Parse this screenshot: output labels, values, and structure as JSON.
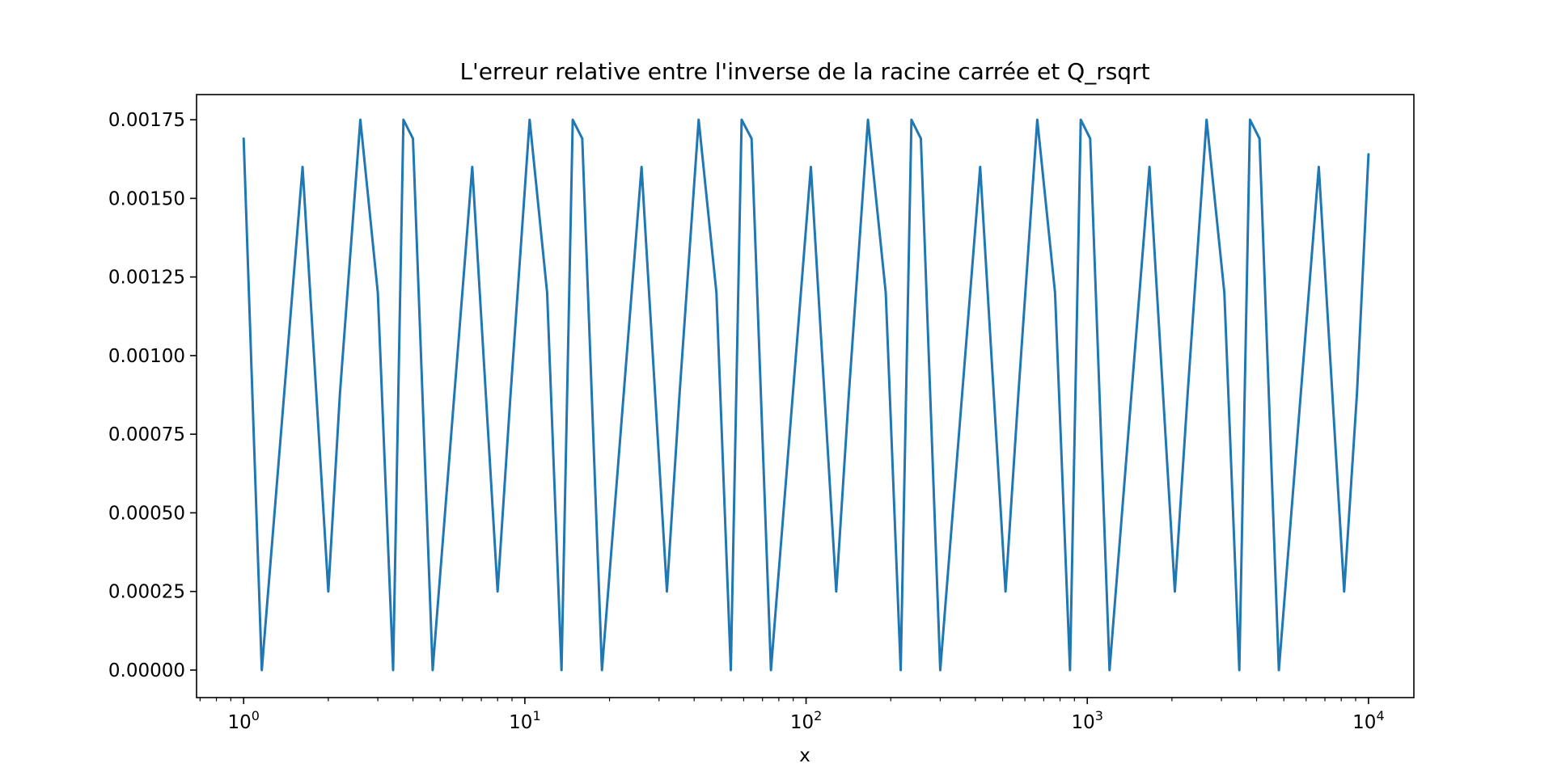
{
  "chart_data": {
    "type": "line",
    "title": "L'erreur relative entre l'inverse de la racine carrée et Q_rsqrt",
    "xlabel": "x",
    "ylabel": "",
    "xscale": "log",
    "xlim": [
      0.68,
      14500.0
    ],
    "ylim": [
      -8.75e-05,
      0.00183
    ],
    "grid": false,
    "y_ticks": [
      0,
      0.00025,
      0.0005,
      0.00075,
      0.001,
      0.00125,
      0.0015,
      0.00175
    ],
    "y_tick_labels": [
      "0.00000",
      "0.00025",
      "0.00050",
      "0.00075",
      "0.00100",
      "0.00125",
      "0.00150",
      "0.00175"
    ],
    "x_ticks": [
      1,
      10,
      100,
      1000,
      10000
    ],
    "x_tick_labels": [
      {
        "base": "10",
        "exp": "0"
      },
      {
        "base": "10",
        "exp": "1"
      },
      {
        "base": "10",
        "exp": "2"
      },
      {
        "base": "10",
        "exp": "3"
      },
      {
        "base": "10",
        "exp": "4"
      }
    ],
    "line_color": "#1f77b4",
    "series": [
      {
        "x": [
          1,
          1.16,
          1.62,
          2,
          2.2,
          2.6,
          3.0,
          3.4,
          3.7,
          4.0,
          4.7,
          6.5,
          8,
          8.9,
          10.4,
          12,
          13.5,
          14.8,
          16,
          18.8,
          26,
          32,
          35.5,
          41.5,
          48,
          54,
          59,
          64,
          75,
          104,
          128,
          142,
          166,
          192,
          217,
          237,
          256,
          300,
          416,
          512,
          569,
          664,
          768,
          868,
          948,
          1024,
          1200,
          1664,
          2048,
          2275,
          2656,
          3072,
          3472,
          3790,
          4096,
          4800,
          6656,
          8192,
          9100,
          10000
        ],
        "y": [
          0.00169,
          0.0,
          0.0016,
          0.00025,
          0.00088,
          0.00175,
          0.0012,
          0.0,
          0.00175,
          0.00169,
          0.0,
          0.0016,
          0.00025,
          0.00088,
          0.00175,
          0.0012,
          0.0,
          0.00175,
          0.00169,
          0.0,
          0.0016,
          0.00025,
          0.00088,
          0.00175,
          0.0012,
          0.0,
          0.00175,
          0.00169,
          0.0,
          0.0016,
          0.00025,
          0.00088,
          0.00175,
          0.0012,
          0.0,
          0.00175,
          0.00169,
          0.0,
          0.0016,
          0.00025,
          0.00088,
          0.00175,
          0.0012,
          0.0,
          0.00175,
          0.00169,
          0.0,
          0.0016,
          0.00025,
          0.00088,
          0.00175,
          0.0012,
          0.0,
          0.00175,
          0.00169,
          0.0,
          0.0016,
          0.00025,
          0.00088,
          0.00164
        ]
      }
    ]
  }
}
